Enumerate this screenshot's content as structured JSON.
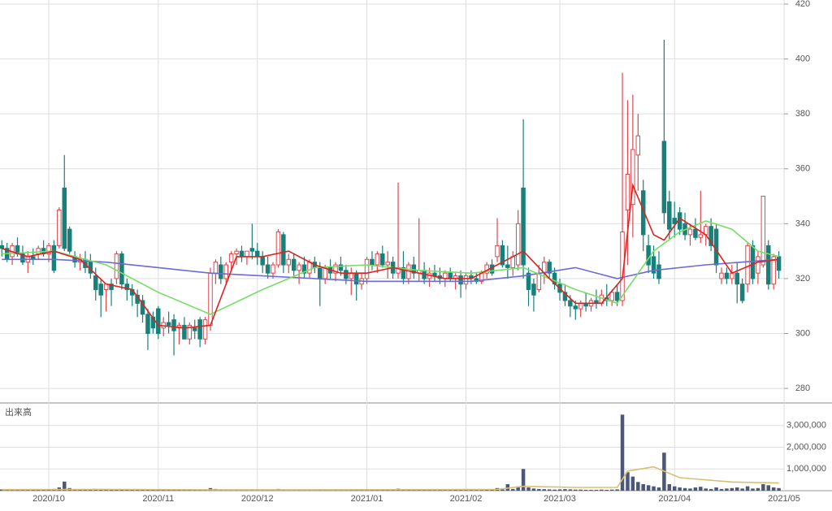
{
  "chart_data": {
    "type": "candlestick",
    "up_color": "#e0474c",
    "down_color": "#17807a",
    "xlim": [
      -0.35,
      150
    ],
    "xticks": [
      {
        "value": 9,
        "label": "2020/10"
      },
      {
        "value": 30,
        "label": "2020/11"
      },
      {
        "value": 49,
        "label": "2020/12"
      },
      {
        "value": 70,
        "label": "2021/01"
      },
      {
        "value": 89,
        "label": "2021/02"
      },
      {
        "value": 107,
        "label": "2021/03"
      },
      {
        "value": 129,
        "label": "2021/04"
      },
      {
        "value": 150,
        "label": "2021/05"
      }
    ],
    "ylim": [
      275,
      420
    ],
    "yticks": [
      280,
      300,
      320,
      340,
      360,
      380,
      400,
      420
    ],
    "grid": true,
    "candles": [
      [
        332,
        334,
        328,
        331
      ],
      [
        331,
        333,
        326,
        327
      ],
      [
        328,
        333,
        325,
        332
      ],
      [
        332,
        335,
        328,
        329
      ],
      [
        329,
        332,
        325,
        326
      ],
      [
        326,
        330,
        322,
        328
      ],
      [
        328,
        331,
        325,
        327
      ],
      [
        329,
        332,
        327,
        331
      ],
      [
        331,
        334,
        328,
        329
      ],
      [
        329,
        333,
        326,
        332
      ],
      [
        332,
        334,
        322,
        323
      ],
      [
        332,
        346,
        331,
        345
      ],
      [
        353,
        365,
        330,
        331
      ],
      [
        338,
        339,
        329,
        330
      ],
      [
        328,
        330,
        324,
        326
      ],
      [
        326,
        329,
        323,
        327
      ],
      [
        327,
        330,
        322,
        324
      ],
      [
        326,
        329,
        320,
        322
      ],
      [
        321,
        324,
        312,
        316
      ],
      [
        318,
        320,
        306,
        314
      ],
      [
        316,
        318,
        308,
        318
      ],
      [
        318,
        320,
        310,
        316
      ],
      [
        320,
        330,
        318,
        329
      ],
      [
        329,
        330,
        316,
        318
      ],
      [
        318,
        320,
        312,
        316
      ],
      [
        316,
        318,
        310,
        314
      ],
      [
        314,
        316,
        306,
        311
      ],
      [
        312,
        314,
        304,
        307
      ],
      [
        307,
        309,
        294,
        300
      ],
      [
        306,
        308,
        300,
        302
      ],
      [
        309,
        310,
        298,
        300
      ],
      [
        302,
        306,
        299,
        304
      ],
      [
        304,
        308,
        300,
        303
      ],
      [
        305,
        307,
        292,
        301
      ],
      [
        302,
        304,
        296,
        303
      ],
      [
        303,
        306,
        298,
        298
      ],
      [
        298,
        304,
        296,
        303
      ],
      [
        302,
        305,
        298,
        301
      ],
      [
        305,
        306,
        295,
        298
      ],
      [
        298,
        306,
        296,
        305
      ],
      [
        303,
        324,
        301,
        322
      ],
      [
        322,
        327,
        318,
        326
      ],
      [
        325,
        328,
        318,
        320
      ],
      [
        320,
        326,
        318,
        325
      ],
      [
        326,
        330,
        323,
        329
      ],
      [
        329,
        331,
        325,
        330
      ],
      [
        330,
        332,
        326,
        328
      ],
      [
        328,
        330,
        325,
        330
      ],
      [
        331,
        340,
        327,
        330
      ],
      [
        330,
        333,
        325,
        328
      ],
      [
        328,
        330,
        322,
        325
      ],
      [
        325,
        328,
        320,
        322
      ],
      [
        322,
        326,
        320,
        325
      ],
      [
        325,
        338,
        324,
        337
      ],
      [
        336,
        337,
        322,
        325
      ],
      [
        325,
        329,
        322,
        327
      ],
      [
        327,
        329,
        321,
        323
      ],
      [
        323,
        326,
        318,
        325
      ],
      [
        325,
        328,
        320,
        322
      ],
      [
        322,
        327,
        320,
        326
      ],
      [
        326,
        328,
        322,
        324
      ],
      [
        324,
        326,
        310,
        320
      ],
      [
        320,
        325,
        318,
        324
      ],
      [
        324,
        327,
        320,
        322
      ],
      [
        322,
        326,
        319,
        325
      ],
      [
        325,
        328,
        321,
        323
      ],
      [
        323,
        325,
        318,
        320
      ],
      [
        320,
        324,
        314,
        322
      ],
      [
        322,
        323,
        312,
        318
      ],
      [
        318,
        322,
        316,
        320
      ],
      [
        320,
        328,
        318,
        327
      ],
      [
        327,
        330,
        323,
        325
      ],
      [
        325,
        330,
        322,
        329
      ],
      [
        329,
        332,
        324,
        325
      ],
      [
        325,
        330,
        320,
        326
      ],
      [
        326,
        328,
        320,
        322
      ],
      [
        322,
        355,
        320,
        324
      ],
      [
        324,
        330,
        318,
        320
      ],
      [
        320,
        326,
        318,
        325
      ],
      [
        325,
        328,
        320,
        322
      ],
      [
        322,
        342,
        319,
        323
      ],
      [
        323,
        326,
        318,
        320
      ],
      [
        320,
        324,
        317,
        322
      ],
      [
        322,
        325,
        319,
        321
      ],
      [
        321,
        324,
        318,
        320
      ],
      [
        320,
        323,
        317,
        322
      ],
      [
        322,
        324,
        319,
        320
      ],
      [
        320,
        322,
        316,
        321
      ],
      [
        321,
        323,
        313,
        318
      ],
      [
        318,
        322,
        316,
        321
      ],
      [
        321,
        323,
        318,
        320
      ],
      [
        320,
        322,
        318,
        319
      ],
      [
        319,
        323,
        318,
        322
      ],
      [
        322,
        326,
        320,
        325
      ],
      [
        325,
        327,
        321,
        322
      ],
      [
        328,
        342,
        326,
        332
      ],
      [
        332,
        334,
        324,
        325
      ],
      [
        325,
        332,
        320,
        324
      ],
      [
        324,
        330,
        321,
        328
      ],
      [
        325,
        345,
        323,
        340
      ],
      [
        353,
        378,
        320,
        325
      ],
      [
        322,
        324,
        310,
        316
      ],
      [
        318,
        320,
        308,
        314
      ],
      [
        316,
        325,
        315,
        322
      ],
      [
        322,
        328,
        318,
        326
      ],
      [
        326,
        327,
        320,
        322
      ],
      [
        322,
        324,
        316,
        318
      ],
      [
        318,
        320,
        312,
        315
      ],
      [
        315,
        318,
        310,
        312
      ],
      [
        312,
        314,
        306,
        310
      ],
      [
        310,
        312,
        305,
        309
      ],
      [
        309,
        312,
        306,
        311
      ],
      [
        311,
        315,
        308,
        310
      ],
      [
        310,
        313,
        308,
        312
      ],
      [
        312,
        316,
        309,
        311
      ],
      [
        311,
        316,
        310,
        314
      ],
      [
        313,
        318,
        310,
        312
      ],
      [
        312,
        316,
        310,
        315
      ],
      [
        315,
        318,
        310,
        312
      ],
      [
        312,
        395,
        310,
        337
      ],
      [
        345,
        385,
        325,
        358
      ],
      [
        347,
        387,
        335,
        367
      ],
      [
        365,
        380,
        352,
        372
      ],
      [
        352,
        356,
        330,
        336
      ],
      [
        332,
        336,
        322,
        325
      ],
      [
        328,
        332,
        320,
        322
      ],
      [
        325,
        330,
        318,
        320
      ],
      [
        370,
        407,
        340,
        344
      ],
      [
        348,
        352,
        334,
        338
      ],
      [
        342,
        348,
        335,
        340
      ],
      [
        344,
        346,
        336,
        338
      ],
      [
        340,
        344,
        334,
        336
      ],
      [
        336,
        340,
        332,
        338
      ],
      [
        338,
        342,
        334,
        335
      ],
      [
        335,
        352,
        333,
        336
      ],
      [
        336,
        340,
        332,
        339
      ],
      [
        339,
        342,
        330,
        332
      ],
      [
        338,
        340,
        322,
        325
      ],
      [
        320,
        324,
        318,
        322
      ],
      [
        322,
        324,
        318,
        320
      ],
      [
        320,
        325,
        318,
        322
      ],
      [
        322,
        326,
        311,
        318
      ],
      [
        318,
        320,
        311,
        312
      ],
      [
        318,
        333,
        315,
        332
      ],
      [
        332,
        334,
        318,
        320
      ],
      [
        322,
        330,
        318,
        328
      ],
      [
        325,
        350,
        324,
        350
      ],
      [
        332,
        334,
        316,
        318
      ],
      [
        318,
        329,
        316,
        328
      ],
      [
        328,
        330,
        320,
        323
      ]
    ],
    "lines": [
      {
        "color": "#6b6bd6",
        "x": [
          0,
          10,
          20,
          30,
          40,
          50,
          60,
          70,
          80,
          90,
          100,
          110,
          118,
          125,
          135,
          149
        ],
        "values": [
          327,
          327,
          326,
          324,
          322,
          321,
          320,
          319,
          319,
          319,
          321,
          324,
          320,
          323,
          325,
          327
        ]
      },
      {
        "color": "#77dd66",
        "x": [
          0,
          10,
          20,
          30,
          40,
          50,
          60,
          70,
          80,
          90,
          100,
          110,
          118,
          125,
          130,
          135,
          140,
          145,
          149
        ],
        "values": [
          329,
          330,
          325,
          315,
          307,
          316,
          324,
          325,
          323,
          322,
          324,
          316,
          311,
          330,
          337,
          341,
          338,
          330,
          328
        ]
      },
      {
        "color": "#dd2222",
        "x": [
          0,
          5,
          10,
          15,
          20,
          25,
          30,
          35,
          40,
          45,
          50,
          55,
          60,
          65,
          70,
          75,
          80,
          85,
          90,
          95,
          100,
          105,
          110,
          115,
          119,
          121,
          123,
          125,
          127,
          130,
          135,
          140,
          145,
          149
        ],
        "values": [
          331,
          328,
          330,
          327,
          318,
          316,
          303,
          302,
          303,
          328,
          328,
          330,
          325,
          322,
          322,
          324,
          322,
          320,
          320,
          325,
          330,
          320,
          311,
          311,
          320,
          354,
          345,
          336,
          334,
          342,
          336,
          322,
          326,
          327
        ]
      }
    ],
    "volume": {
      "label": "出来高",
      "color": "#4b5878",
      "ylim": [
        0,
        4000000
      ],
      "yticks": [
        {
          "value": 1000000,
          "label": "1,000,000"
        },
        {
          "value": 2000000,
          "label": "2,000,000"
        },
        {
          "value": 3000000,
          "label": "3,000,000"
        }
      ],
      "values": [
        60000,
        50000,
        40000,
        70000,
        50000,
        40000,
        50000,
        60000,
        50000,
        60000,
        80000,
        150000,
        420000,
        120000,
        70000,
        60000,
        50000,
        60000,
        80000,
        70000,
        50000,
        60000,
        70000,
        60000,
        50000,
        40000,
        50000,
        60000,
        70000,
        50000,
        40000,
        50000,
        40000,
        60000,
        50000,
        40000,
        30000,
        40000,
        50000,
        40000,
        120000,
        80000,
        60000,
        50000,
        50000,
        40000,
        40000,
        50000,
        60000,
        40000,
        50000,
        40000,
        40000,
        80000,
        60000,
        40000,
        40000,
        30000,
        40000,
        30000,
        30000,
        60000,
        40000,
        30000,
        30000,
        30000,
        40000,
        50000,
        60000,
        30000,
        50000,
        40000,
        30000,
        30000,
        40000,
        40000,
        90000,
        60000,
        40000,
        30000,
        60000,
        40000,
        30000,
        30000,
        30000,
        30000,
        30000,
        40000,
        40000,
        30000,
        30000,
        30000,
        30000,
        40000,
        40000,
        120000,
        60000,
        300000,
        80000,
        200000,
        1000000,
        150000,
        100000,
        80000,
        70000,
        60000,
        50000,
        60000,
        70000,
        60000,
        50000,
        50000,
        40000,
        40000,
        40000,
        50000,
        40000,
        50000,
        60000,
        3500000,
        850000,
        650000,
        400000,
        300000,
        250000,
        200000,
        150000,
        1750000,
        300000,
        200000,
        150000,
        120000,
        100000,
        150000,
        180000,
        100000,
        80000,
        150000,
        80000,
        100000,
        120000,
        150000,
        100000,
        200000,
        100000,
        120000,
        300000,
        250000,
        150000,
        120000
      ],
      "lines": [
        {
          "color": "#d9c070",
          "x": [
            0,
            20,
            40,
            60,
            80,
            95,
            100,
            110,
            118,
            120,
            125,
            130,
            140,
            149
          ],
          "values": [
            50000,
            60000,
            40000,
            40000,
            50000,
            60000,
            200000,
            150000,
            150000,
            900000,
            1100000,
            600000,
            400000,
            350000
          ]
        }
      ]
    }
  }
}
